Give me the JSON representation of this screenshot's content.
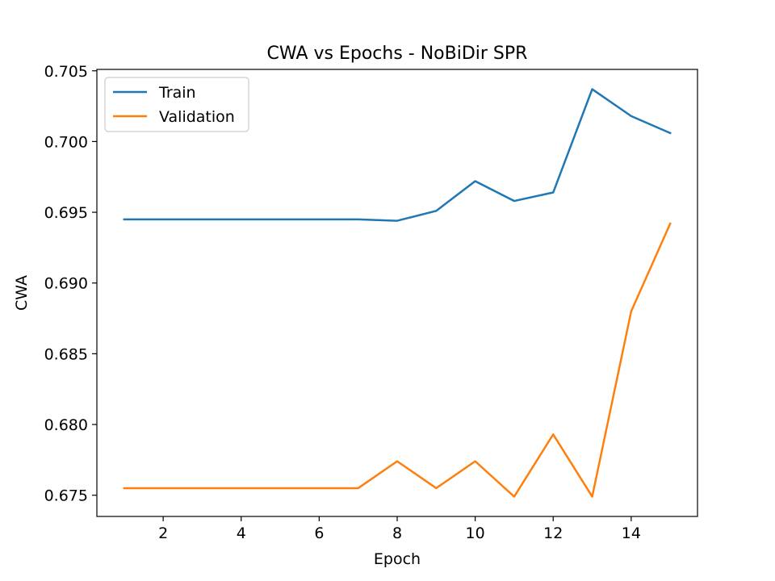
{
  "chart_data": {
    "type": "line",
    "title": "CWA vs Epochs - NoBiDir SPR",
    "xlabel": "Epoch",
    "ylabel": "CWA",
    "xlim": [
      0.3,
      15.7
    ],
    "ylim": [
      0.6735,
      0.7051
    ],
    "xticks": [
      2,
      4,
      6,
      8,
      10,
      12,
      14
    ],
    "xtick_labels": [
      "2",
      "4",
      "6",
      "8",
      "10",
      "12",
      "14"
    ],
    "yticks": [
      0.675,
      0.68,
      0.685,
      0.69,
      0.695,
      0.7,
      0.705
    ],
    "ytick_labels": [
      "0.675",
      "0.680",
      "0.685",
      "0.690",
      "0.695",
      "0.700",
      "0.705"
    ],
    "grid": false,
    "legend_position": "upper-left",
    "x": [
      1,
      2,
      3,
      4,
      5,
      6,
      7,
      8,
      9,
      10,
      11,
      12,
      13,
      14,
      15
    ],
    "series": [
      {
        "name": "Train",
        "color": "#1f77b4",
        "values": [
          0.6945,
          0.6945,
          0.6945,
          0.6945,
          0.6945,
          0.6945,
          0.6945,
          0.6944,
          0.6951,
          0.6972,
          0.6958,
          0.6964,
          0.7037,
          0.7018,
          0.7006
        ]
      },
      {
        "name": "Validation",
        "color": "#ff7f0e",
        "values": [
          0.6755,
          0.6755,
          0.6755,
          0.6755,
          0.6755,
          0.6755,
          0.6755,
          0.6774,
          0.6755,
          0.6774,
          0.6749,
          0.6793,
          0.6749,
          0.688,
          0.6942
        ]
      }
    ]
  }
}
